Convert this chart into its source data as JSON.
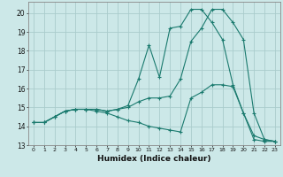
{
  "xlabel": "Humidex (Indice chaleur)",
  "background_color": "#cce8e8",
  "grid_color": "#aacccc",
  "line_color": "#1a7a6e",
  "xlim": [
    -0.5,
    23.5
  ],
  "ylim": [
    13.0,
    20.6
  ],
  "yticks": [
    13,
    14,
    15,
    16,
    17,
    18,
    19,
    20
  ],
  "xticks": [
    0,
    1,
    2,
    3,
    4,
    5,
    6,
    7,
    8,
    9,
    10,
    11,
    12,
    13,
    14,
    15,
    16,
    17,
    18,
    19,
    20,
    21,
    22,
    23
  ],
  "series": [
    {
      "x": [
        0,
        1,
        2,
        3,
        4,
        5,
        6,
        7,
        8,
        9,
        10,
        11,
        12,
        13,
        14,
        15,
        16,
        17,
        18,
        19,
        20,
        21,
        22,
        23
      ],
      "y": [
        14.2,
        14.2,
        14.5,
        14.8,
        14.9,
        14.9,
        14.9,
        14.8,
        14.9,
        15.1,
        16.5,
        18.3,
        16.6,
        19.2,
        19.3,
        20.2,
        20.2,
        19.5,
        18.6,
        16.2,
        14.7,
        13.3,
        13.2,
        13.2
      ]
    },
    {
      "x": [
        0,
        1,
        2,
        3,
        4,
        5,
        6,
        7,
        8,
        9,
        10,
        11,
        12,
        13,
        14,
        15,
        16,
        17,
        18,
        19,
        20,
        21,
        22,
        23
      ],
      "y": [
        14.2,
        14.2,
        14.5,
        14.8,
        14.9,
        14.9,
        14.9,
        14.8,
        14.9,
        15.0,
        15.3,
        15.5,
        15.5,
        15.6,
        16.5,
        18.5,
        19.2,
        20.2,
        20.2,
        19.5,
        18.6,
        14.7,
        13.3,
        13.2
      ]
    },
    {
      "x": [
        0,
        1,
        2,
        3,
        4,
        5,
        6,
        7,
        8,
        9,
        10,
        11,
        12,
        13,
        14,
        15,
        16,
        17,
        18,
        19,
        20,
        21,
        22,
        23
      ],
      "y": [
        14.2,
        14.2,
        14.5,
        14.8,
        14.9,
        14.9,
        14.8,
        14.7,
        14.5,
        14.3,
        14.2,
        14.0,
        13.9,
        13.8,
        13.7,
        15.5,
        15.8,
        16.2,
        16.2,
        16.1,
        14.7,
        13.5,
        13.3,
        13.2
      ]
    }
  ]
}
